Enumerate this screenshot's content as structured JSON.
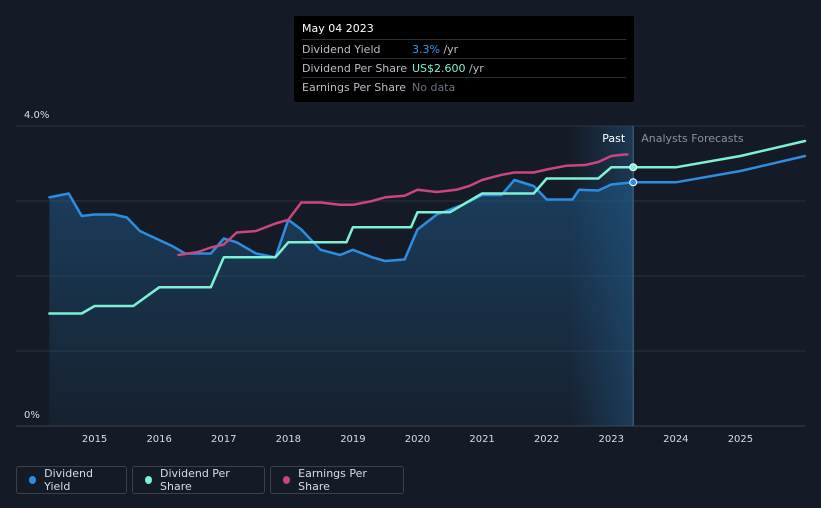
{
  "chart_data": {
    "type": "line",
    "y_axis": {
      "min": 0,
      "max": 4.0,
      "unit": "%",
      "tick_labels": [
        "4.0%",
        "0%"
      ]
    },
    "x_axis": {
      "min": 2014.0,
      "max": 2026.0,
      "tick_labels": [
        "2015",
        "2016",
        "2017",
        "2018",
        "2019",
        "2020",
        "2021",
        "2022",
        "2023",
        "2024",
        "2025"
      ]
    },
    "past_label": "Past",
    "forecast_label": "Analysts Forecasts",
    "past_end": 2023.34,
    "highlight_start": 2022.35,
    "grid": true,
    "legend_position": "bottom-left",
    "series": [
      {
        "name": "Dividend Yield",
        "color": "#2d8de0",
        "points": [
          [
            2014.3,
            3.05
          ],
          [
            2014.6,
            3.1
          ],
          [
            2014.8,
            2.8
          ],
          [
            2015.0,
            2.82
          ],
          [
            2015.3,
            2.82
          ],
          [
            2015.5,
            2.78
          ],
          [
            2015.7,
            2.6
          ],
          [
            2016.0,
            2.48
          ],
          [
            2016.2,
            2.4
          ],
          [
            2016.4,
            2.3
          ],
          [
            2016.7,
            2.3
          ],
          [
            2016.8,
            2.3
          ],
          [
            2017.0,
            2.5
          ],
          [
            2017.2,
            2.45
          ],
          [
            2017.5,
            2.3
          ],
          [
            2017.8,
            2.25
          ],
          [
            2018.0,
            2.75
          ],
          [
            2018.2,
            2.62
          ],
          [
            2018.5,
            2.35
          ],
          [
            2018.8,
            2.28
          ],
          [
            2019.0,
            2.35
          ],
          [
            2019.3,
            2.25
          ],
          [
            2019.5,
            2.2
          ],
          [
            2019.8,
            2.22
          ],
          [
            2020.0,
            2.62
          ],
          [
            2020.3,
            2.82
          ],
          [
            2020.7,
            2.95
          ],
          [
            2021.0,
            3.08
          ],
          [
            2021.3,
            3.08
          ],
          [
            2021.5,
            3.28
          ],
          [
            2021.8,
            3.2
          ],
          [
            2022.0,
            3.02
          ],
          [
            2022.4,
            3.02
          ],
          [
            2022.5,
            3.15
          ],
          [
            2022.8,
            3.14
          ],
          [
            2023.0,
            3.22
          ],
          [
            2023.34,
            3.25
          ],
          [
            2023.5,
            3.25
          ],
          [
            2024.0,
            3.25
          ],
          [
            2025.0,
            3.4
          ],
          [
            2026.0,
            3.6
          ]
        ]
      },
      {
        "name": "Dividend Per Share",
        "color": "#7ef0d6",
        "points": [
          [
            2014.3,
            1.5
          ],
          [
            2014.8,
            1.5
          ],
          [
            2015.0,
            1.6
          ],
          [
            2015.6,
            1.6
          ],
          [
            2016.0,
            1.85
          ],
          [
            2016.8,
            1.85
          ],
          [
            2017.0,
            2.25
          ],
          [
            2017.8,
            2.25
          ],
          [
            2018.0,
            2.45
          ],
          [
            2018.9,
            2.45
          ],
          [
            2019.0,
            2.65
          ],
          [
            2019.9,
            2.65
          ],
          [
            2020.0,
            2.85
          ],
          [
            2020.5,
            2.85
          ],
          [
            2021.0,
            3.1
          ],
          [
            2021.8,
            3.1
          ],
          [
            2022.0,
            3.3
          ],
          [
            2022.8,
            3.3
          ],
          [
            2023.0,
            3.45
          ],
          [
            2023.34,
            3.45
          ],
          [
            2024.0,
            3.45
          ],
          [
            2025.0,
            3.6
          ],
          [
            2026.0,
            3.8
          ]
        ]
      },
      {
        "name": "Earnings Per Share",
        "color": "#c9467f",
        "points": [
          [
            2016.3,
            2.28
          ],
          [
            2016.6,
            2.32
          ],
          [
            2016.8,
            2.38
          ],
          [
            2017.0,
            2.42
          ],
          [
            2017.2,
            2.58
          ],
          [
            2017.5,
            2.6
          ],
          [
            2017.8,
            2.7
          ],
          [
            2018.0,
            2.75
          ],
          [
            2018.2,
            2.98
          ],
          [
            2018.5,
            2.98
          ],
          [
            2018.8,
            2.95
          ],
          [
            2019.0,
            2.95
          ],
          [
            2019.3,
            3.0
          ],
          [
            2019.5,
            3.05
          ],
          [
            2019.8,
            3.07
          ],
          [
            2020.0,
            3.15
          ],
          [
            2020.3,
            3.12
          ],
          [
            2020.6,
            3.15
          ],
          [
            2020.8,
            3.2
          ],
          [
            2021.0,
            3.28
          ],
          [
            2021.3,
            3.35
          ],
          [
            2021.5,
            3.38
          ],
          [
            2021.8,
            3.38
          ],
          [
            2022.0,
            3.42
          ],
          [
            2022.3,
            3.47
          ],
          [
            2022.6,
            3.48
          ],
          [
            2022.8,
            3.52
          ],
          [
            2023.0,
            3.6
          ],
          [
            2023.2,
            3.62
          ],
          [
            2023.25,
            3.62
          ]
        ]
      }
    ]
  },
  "tooltip": {
    "date": "May 04 2023",
    "rows": [
      {
        "name": "Dividend Yield",
        "value": "3.3%",
        "suffix": " /yr"
      },
      {
        "name": "Dividend Per Share",
        "value": "US$2.600",
        "suffix": " /yr"
      },
      {
        "name": "Earnings Per Share",
        "value": "No data",
        "suffix": ""
      }
    ]
  },
  "legend": [
    {
      "label": "Dividend Yield",
      "color": "#2d8de0"
    },
    {
      "label": "Dividend Per Share",
      "color": "#7ef0d6"
    },
    {
      "label": "Earnings Per Share",
      "color": "#c9467f"
    }
  ]
}
